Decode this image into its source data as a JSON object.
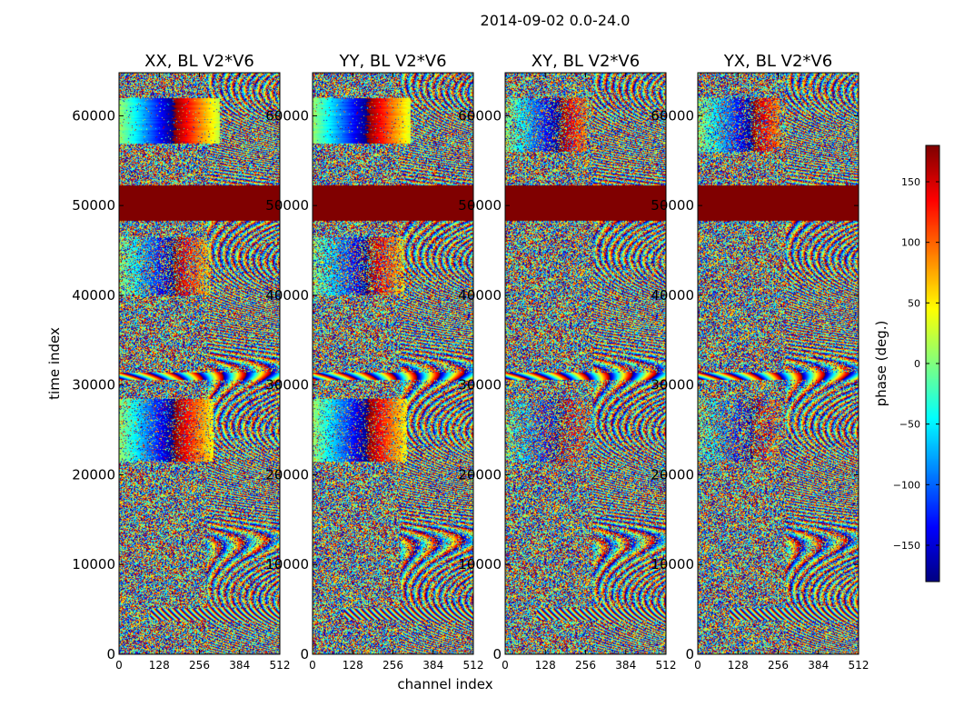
{
  "chart_data": {
    "type": "heatmap",
    "suptitle": "2014-09-02 0.0-24.0",
    "panels": [
      {
        "title": "XX, BL V2*V6",
        "xlim": [
          0,
          512
        ],
        "ylim": [
          0,
          64800
        ]
      },
      {
        "title": "YY, BL V2*V6",
        "xlim": [
          0,
          512
        ],
        "ylim": [
          0,
          64800
        ]
      },
      {
        "title": "XY, BL V2*V6",
        "xlim": [
          0,
          512
        ],
        "ylim": [
          0,
          64800
        ]
      },
      {
        "title": "YX, BL V2*V6",
        "xlim": [
          0,
          512
        ],
        "ylim": [
          0,
          64800
        ]
      }
    ],
    "xlabel": "channel index",
    "ylabel": "time index",
    "x_ticks": [
      "0",
      "128",
      "256",
      "384",
      "512"
    ],
    "x_tick_values": [
      0,
      128,
      256,
      384,
      512
    ],
    "y_ticks": [
      "0",
      "10000",
      "20000",
      "30000",
      "40000",
      "50000",
      "60000"
    ],
    "y_tick_values": [
      0,
      10000,
      20000,
      30000,
      40000,
      50000,
      60000
    ],
    "colorbar": {
      "label": "phase (deg.)",
      "range": [
        -180,
        180
      ],
      "ticks": [
        "150",
        "100",
        "50",
        "0",
        "−50",
        "−100",
        "−150"
      ],
      "tick_values": [
        150,
        100,
        50,
        0,
        -50,
        -100,
        -150
      ],
      "colormap": "jet"
    },
    "flagged_band": {
      "t_start": 48300,
      "t_end": 52300,
      "value": 180
    },
    "coherent_regions": [
      {
        "panel": "XX",
        "t_start": 57000,
        "t_end": 62000,
        "ch_end": 320,
        "strength": 0.95
      },
      {
        "panel": "YY",
        "t_start": 57000,
        "t_end": 62000,
        "ch_end": 310,
        "strength": 0.95
      },
      {
        "panel": "XY",
        "t_start": 56000,
        "t_end": 62000,
        "ch_end": 260,
        "strength": 0.55
      },
      {
        "panel": "YX",
        "t_start": 56000,
        "t_end": 62000,
        "ch_end": 260,
        "strength": 0.55
      }
    ],
    "colors": {
      "flagged": "#800000",
      "axes": "#000000",
      "background": "#ffffff"
    }
  }
}
